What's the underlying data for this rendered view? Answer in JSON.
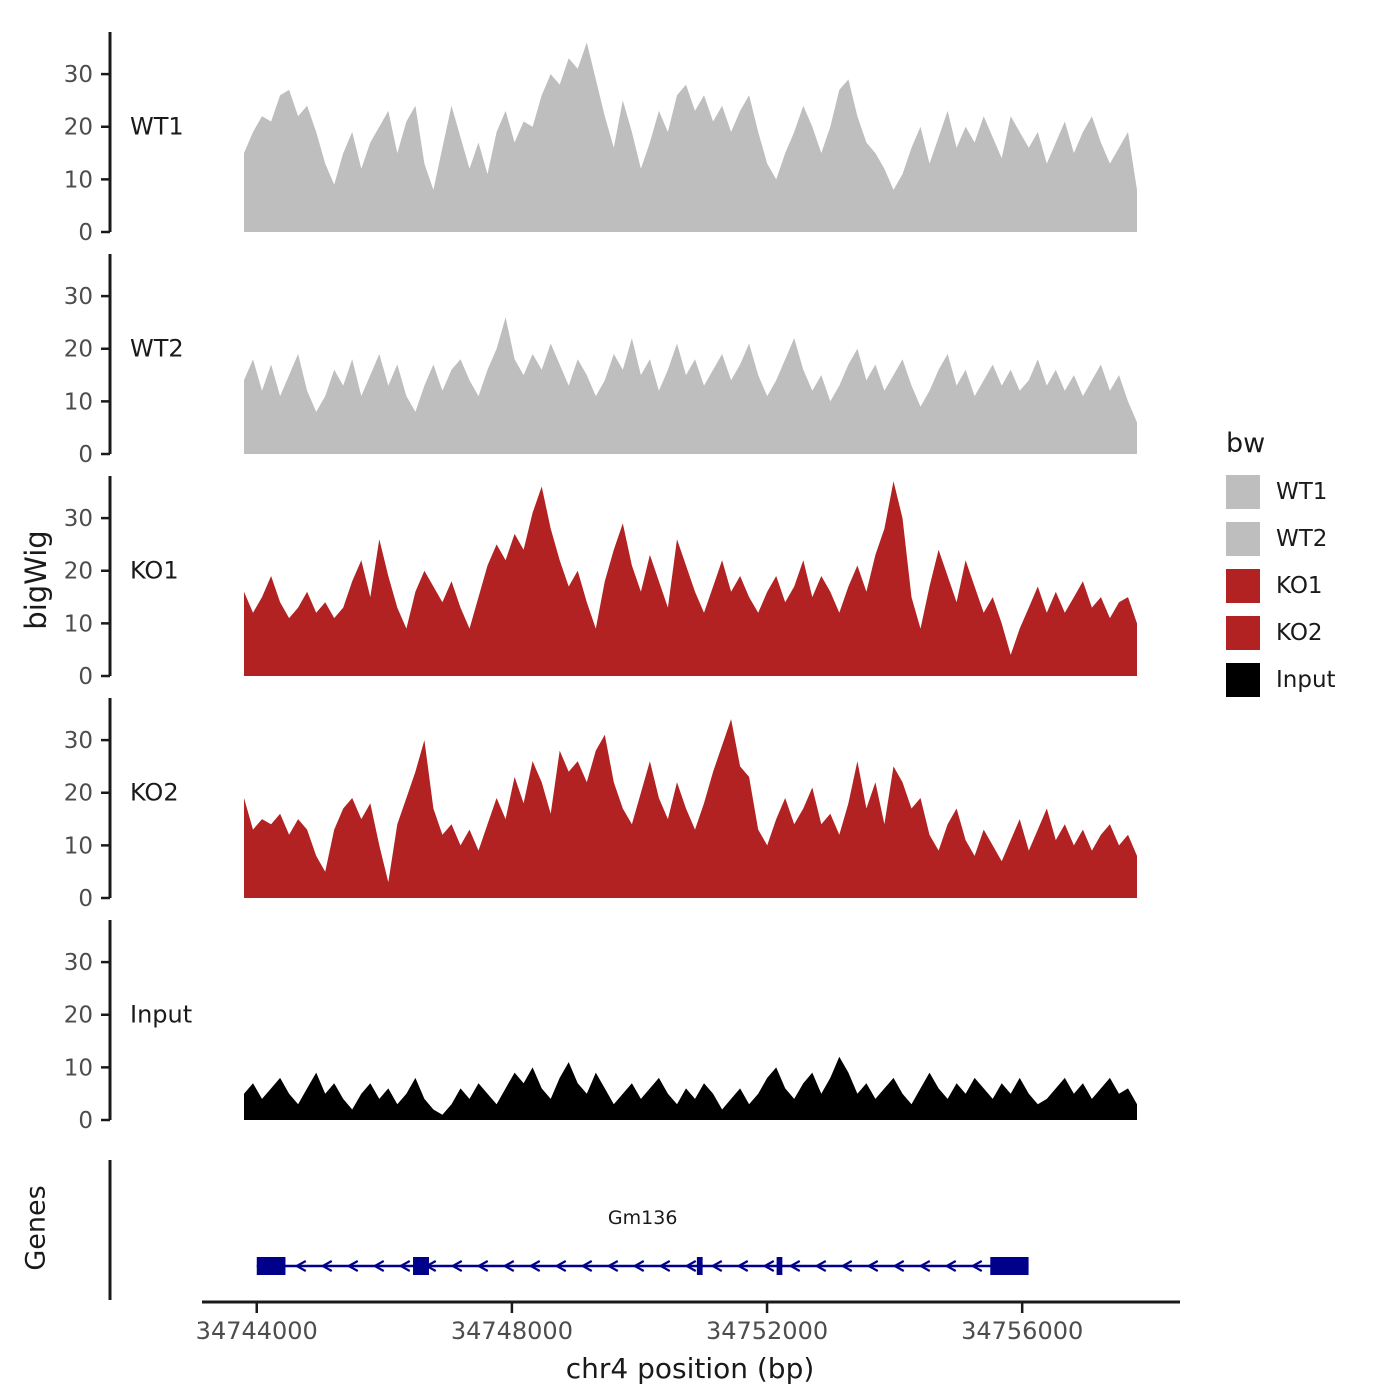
{
  "figure": {
    "y_axis_title": "bigWig",
    "genes_axis_title": "Genes",
    "x_axis_title": "chr4 position (bp)"
  },
  "legend": {
    "title": "bw",
    "entries": [
      {
        "label": "WT1",
        "color": "#BEBEBE"
      },
      {
        "label": "WT2",
        "color": "#BEBEBE"
      },
      {
        "label": "KO1",
        "color": "#B22222"
      },
      {
        "label": "KO2",
        "color": "#B22222"
      },
      {
        "label": "Input",
        "color": "#000000"
      }
    ]
  },
  "chart_data": {
    "type": "area",
    "title": "",
    "xlabel": "chr4 position (bp)",
    "ylabel": "bigWig",
    "x_domain": [
      34743800,
      34757800
    ],
    "x_ticks": [
      34744000,
      34748000,
      34752000,
      34756000
    ],
    "y_ticks": [
      0,
      10,
      20,
      30
    ],
    "ylim": [
      0,
      38
    ],
    "grid": false,
    "legend_position": "right",
    "tracks": [
      {
        "name": "WT1",
        "color": "#BEBEBE",
        "values": [
          15,
          19,
          22,
          21,
          26,
          27,
          22,
          24,
          19,
          13,
          9,
          15,
          19,
          12,
          17,
          20,
          23,
          15,
          21,
          24,
          13,
          8,
          16,
          24,
          18,
          12,
          17,
          11,
          19,
          23,
          17,
          21,
          20,
          26,
          30,
          28,
          33,
          31,
          36,
          29,
          22,
          16,
          25,
          19,
          12,
          17,
          23,
          19,
          26,
          28,
          23,
          26,
          21,
          24,
          19,
          23,
          26,
          19,
          13,
          10,
          15,
          19,
          24,
          20,
          15,
          20,
          27,
          29,
          22,
          17,
          15,
          12,
          8,
          11,
          16,
          20,
          13,
          18,
          23,
          16,
          20,
          17,
          22,
          18,
          14,
          22,
          19,
          16,
          19,
          13,
          17,
          21,
          15,
          19,
          22,
          17,
          13,
          16,
          19,
          8
        ]
      },
      {
        "name": "WT2",
        "color": "#BEBEBE",
        "values": [
          14,
          18,
          12,
          17,
          11,
          15,
          19,
          12,
          8,
          11,
          16,
          13,
          18,
          11,
          15,
          19,
          13,
          17,
          11,
          8,
          13,
          17,
          12,
          16,
          18,
          14,
          11,
          16,
          20,
          26,
          18,
          15,
          19,
          16,
          21,
          17,
          13,
          18,
          15,
          11,
          14,
          19,
          16,
          22,
          15,
          18,
          12,
          16,
          21,
          15,
          18,
          13,
          16,
          19,
          14,
          17,
          21,
          15,
          11,
          14,
          18,
          22,
          16,
          12,
          15,
          10,
          13,
          17,
          20,
          14,
          17,
          12,
          15,
          18,
          13,
          9,
          12,
          16,
          19,
          13,
          16,
          11,
          14,
          17,
          13,
          16,
          12,
          14,
          18,
          13,
          16,
          12,
          15,
          11,
          14,
          17,
          12,
          15,
          10,
          6
        ]
      },
      {
        "name": "KO1",
        "color": "#B22222",
        "values": [
          16,
          12,
          15,
          19,
          14,
          11,
          13,
          16,
          12,
          14,
          11,
          13,
          18,
          22,
          15,
          26,
          19,
          13,
          9,
          16,
          20,
          17,
          14,
          18,
          13,
          9,
          15,
          21,
          25,
          22,
          27,
          24,
          31,
          36,
          28,
          22,
          17,
          20,
          14,
          9,
          18,
          24,
          29,
          21,
          16,
          23,
          18,
          13,
          26,
          21,
          16,
          12,
          17,
          22,
          16,
          19,
          15,
          12,
          16,
          19,
          14,
          17,
          22,
          15,
          19,
          16,
          12,
          17,
          21,
          16,
          23,
          28,
          37,
          30,
          15,
          9,
          17,
          24,
          19,
          14,
          22,
          17,
          12,
          15,
          10,
          4,
          9,
          13,
          17,
          12,
          16,
          12,
          15,
          18,
          13,
          15,
          11,
          14,
          15,
          10
        ]
      },
      {
        "name": "KO2",
        "color": "#B22222",
        "values": [
          19,
          13,
          15,
          14,
          16,
          12,
          15,
          13,
          8,
          5,
          13,
          17,
          19,
          15,
          18,
          10,
          3,
          14,
          19,
          24,
          30,
          17,
          12,
          14,
          10,
          13,
          9,
          14,
          19,
          15,
          23,
          18,
          26,
          22,
          16,
          28,
          24,
          26,
          22,
          28,
          31,
          22,
          17,
          14,
          20,
          26,
          19,
          15,
          22,
          17,
          13,
          18,
          24,
          29,
          34,
          25,
          23,
          13,
          10,
          15,
          19,
          14,
          17,
          21,
          14,
          16,
          12,
          18,
          26,
          17,
          22,
          14,
          25,
          22,
          17,
          19,
          12,
          9,
          14,
          17,
          11,
          8,
          13,
          10,
          7,
          11,
          15,
          9,
          13,
          17,
          11,
          14,
          10,
          13,
          9,
          12,
          14,
          10,
          12,
          8
        ]
      },
      {
        "name": "Input",
        "color": "#000000",
        "values": [
          5,
          7,
          4,
          6,
          8,
          5,
          3,
          6,
          9,
          5,
          7,
          4,
          2,
          5,
          7,
          4,
          6,
          3,
          5,
          8,
          4,
          2,
          1,
          3,
          6,
          4,
          7,
          5,
          3,
          6,
          9,
          7,
          10,
          6,
          4,
          8,
          11,
          7,
          5,
          9,
          6,
          3,
          5,
          7,
          4,
          6,
          8,
          5,
          3,
          6,
          4,
          7,
          5,
          2,
          4,
          6,
          3,
          5,
          8,
          10,
          6,
          4,
          7,
          9,
          5,
          8,
          12,
          9,
          5,
          7,
          4,
          6,
          8,
          5,
          3,
          6,
          9,
          6,
          4,
          7,
          5,
          8,
          6,
          4,
          7,
          5,
          8,
          5,
          3,
          4,
          6,
          8,
          5,
          7,
          4,
          6,
          8,
          5,
          6,
          3
        ]
      }
    ],
    "gene_track": {
      "label": "Gm136",
      "color": "#00008B",
      "strand": "-",
      "start": 34744000,
      "end": 34756100,
      "exons": [
        [
          34744000,
          34744450
        ],
        [
          34746450,
          34746700
        ],
        [
          34750900,
          34750990
        ],
        [
          34752150,
          34752240
        ],
        [
          34755500,
          34756100
        ]
      ]
    }
  }
}
